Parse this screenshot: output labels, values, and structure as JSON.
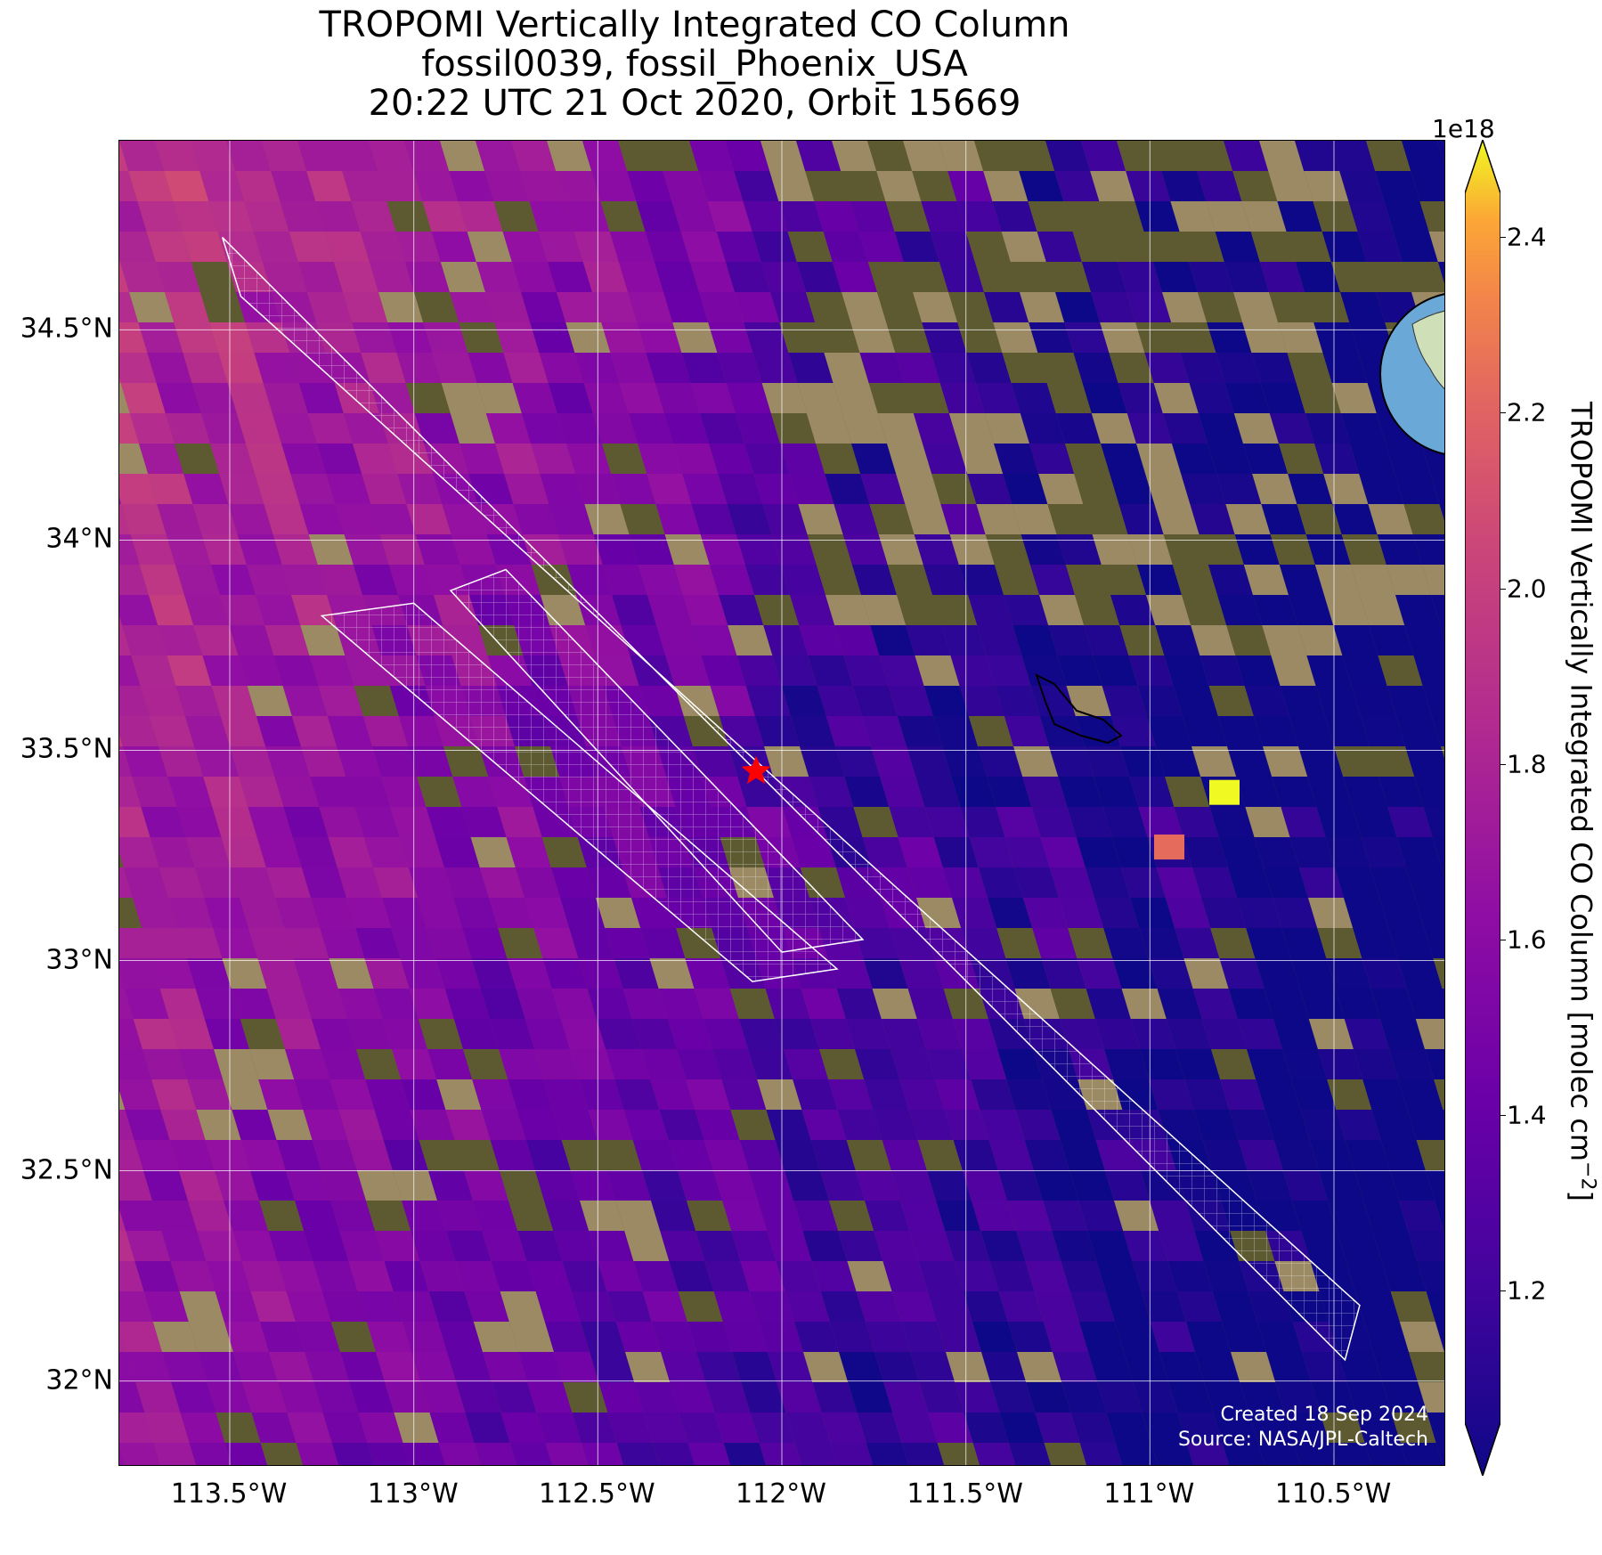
{
  "title": {
    "line1": "TROPOMI Vertically Integrated CO Column",
    "line2": "fossil0039, fossil_Phoenix_USA",
    "line3": "20:22 UTC 21 Oct 2020, Orbit 15669"
  },
  "map": {
    "lon_range": [
      -113.8,
      -110.2
    ],
    "lat_range": [
      31.8,
      34.95
    ],
    "target_site": {
      "lon": -112.07,
      "lat": 33.45,
      "marker": "star-icon",
      "color": "#ff0000"
    },
    "grid": true
  },
  "axes": {
    "x_ticks": [
      {
        "value": -113.5,
        "label": "113.5°W"
      },
      {
        "value": -113.0,
        "label": "113°W"
      },
      {
        "value": -112.5,
        "label": "112.5°W"
      },
      {
        "value": -112.0,
        "label": "112°W"
      },
      {
        "value": -111.5,
        "label": "111.5°W"
      },
      {
        "value": -111.0,
        "label": "111°W"
      },
      {
        "value": -110.5,
        "label": "110.5°W"
      }
    ],
    "y_ticks": [
      {
        "value": 34.5,
        "label": "34.5°N"
      },
      {
        "value": 34.0,
        "label": "34°N"
      },
      {
        "value": 33.5,
        "label": "33.5°N"
      },
      {
        "value": 33.0,
        "label": "33°N"
      },
      {
        "value": 32.5,
        "label": "32.5°N"
      },
      {
        "value": 32.0,
        "label": "32°N"
      }
    ]
  },
  "colorbar": {
    "label": "TROPOMI Vertically Integrated CO Column [molec cm",
    "label_sup": "−2",
    "label_end": "]",
    "exponent": "1e18",
    "range": [
      1.05,
      2.45
    ],
    "colormap": "plasma",
    "ticks": [
      {
        "value": 1.2,
        "label": "1.2"
      },
      {
        "value": 1.4,
        "label": "1.4"
      },
      {
        "value": 1.6,
        "label": "1.6"
      },
      {
        "value": 1.8,
        "label": "1.8"
      },
      {
        "value": 2.0,
        "label": "2.0"
      },
      {
        "value": 2.2,
        "label": "2.2"
      },
      {
        "value": 2.4,
        "label": "2.4"
      }
    ]
  },
  "credits": {
    "created": "Created 18 Sep 2024",
    "source": "Source: NASA/JPL-Caltech"
  },
  "inset_globe": {
    "icon": "globe-icon",
    "ocean_color": "#6aa8d8",
    "land_color": "#cfe0b8"
  }
}
